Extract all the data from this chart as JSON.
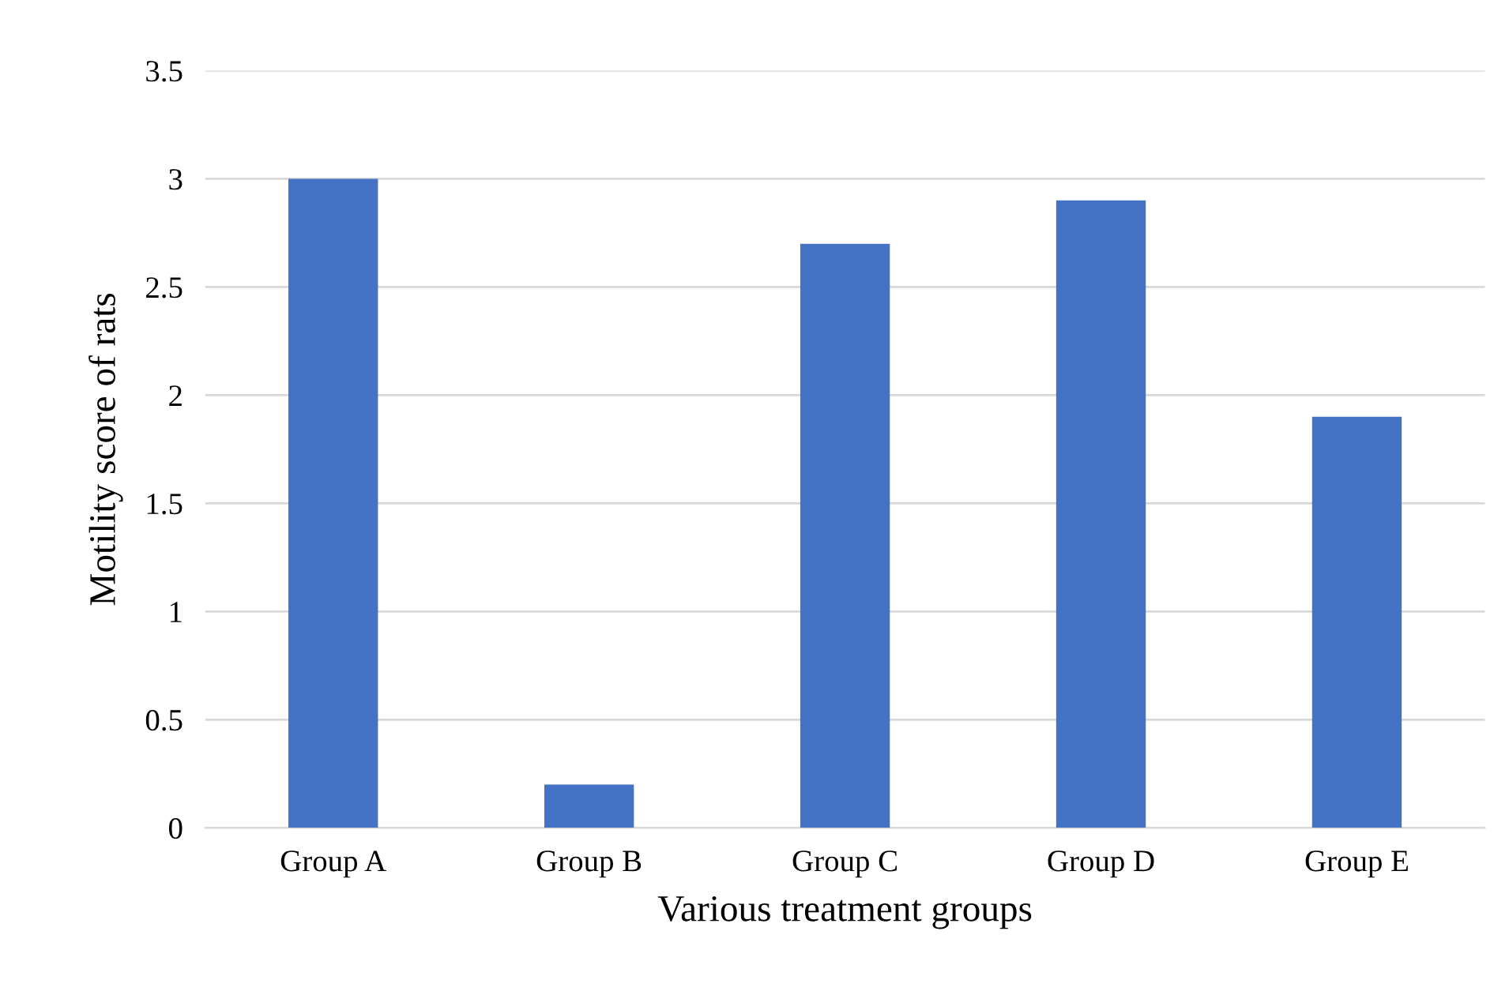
{
  "chart_data": {
    "type": "bar",
    "xlabel": "Various treatment groups",
    "ylabel": "Motility score of rats",
    "categories": [
      "Group A",
      "Group B",
      "Group C",
      "Group D",
      "Group E"
    ],
    "values": [
      3.0,
      0.2,
      2.7,
      2.9,
      1.9
    ],
    "color": "#4472c4",
    "ylim": [
      0,
      3.5
    ],
    "yticks": [
      0,
      0.5,
      1,
      1.5,
      2,
      2.5,
      3,
      3.5
    ],
    "grid": "y"
  }
}
